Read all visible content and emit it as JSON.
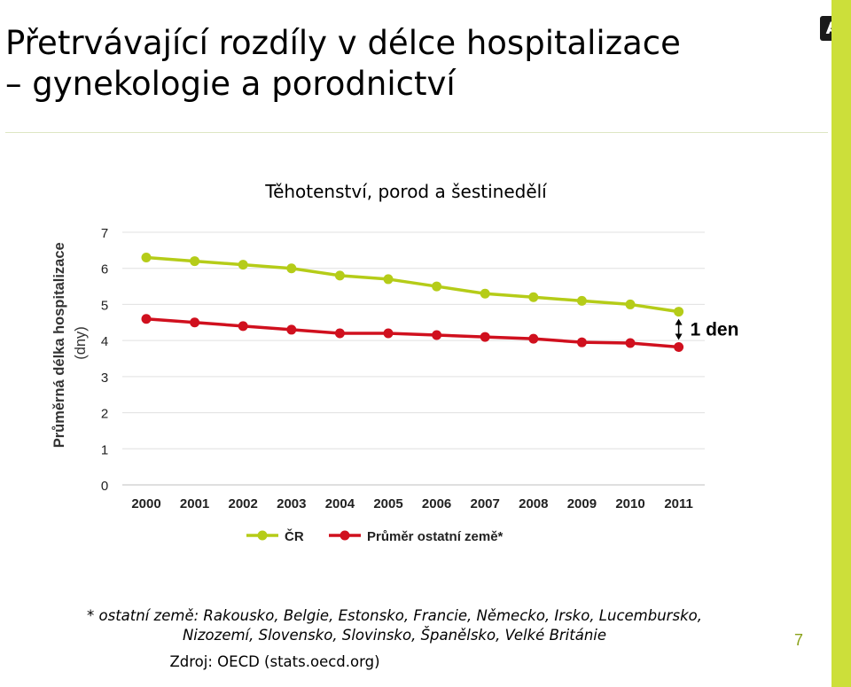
{
  "slide": {
    "title_lines": [
      "Přetrvávající rozdíly v délce hospitalizace",
      "– gynekologie a porodnictví"
    ],
    "footnote_lines": [
      "* ostatní země: Rakousko, Belgie, Estonsko, Francie, Německo, Irsko, Lucembursko,",
      "Nizozemí, Slovensko, Slovinsko, Španělsko, Velké Británie"
    ],
    "source": "Zdroj: OECD (stats.oecd.org)",
    "page_number": "7",
    "logo_letter": "A",
    "colors": {
      "accent_bar": "#ccdf3a",
      "logo_bg": "#1a1a1a"
    }
  },
  "chart_data": {
    "type": "line",
    "title": "Těhotenství, porod a šestinedělí",
    "ylabel_lines": [
      "Průměrná délka hospitalizace",
      "(dny)"
    ],
    "xlabel": "",
    "x": [
      "2000",
      "2001",
      "2002",
      "2003",
      "2004",
      "2005",
      "2006",
      "2007",
      "2008",
      "2009",
      "2010",
      "2011"
    ],
    "ylim": [
      0,
      7
    ],
    "yticks": [
      0,
      1,
      2,
      3,
      4,
      5,
      6,
      7
    ],
    "grid": true,
    "legend_position": "bottom",
    "series": [
      {
        "name": "ČR",
        "color": "#b5cc18",
        "values": [
          6.3,
          6.2,
          6.1,
          6.0,
          5.8,
          5.7,
          5.5,
          5.3,
          5.2,
          5.1,
          5.0,
          4.8
        ]
      },
      {
        "name": "Průměr ostatní země*",
        "color": "#d0101e",
        "values": [
          4.6,
          4.5,
          4.4,
          4.3,
          4.2,
          4.2,
          4.15,
          4.1,
          4.05,
          3.95,
          3.93,
          3.82
        ]
      }
    ],
    "annotation": {
      "text": "1 den",
      "x": "2011"
    }
  }
}
